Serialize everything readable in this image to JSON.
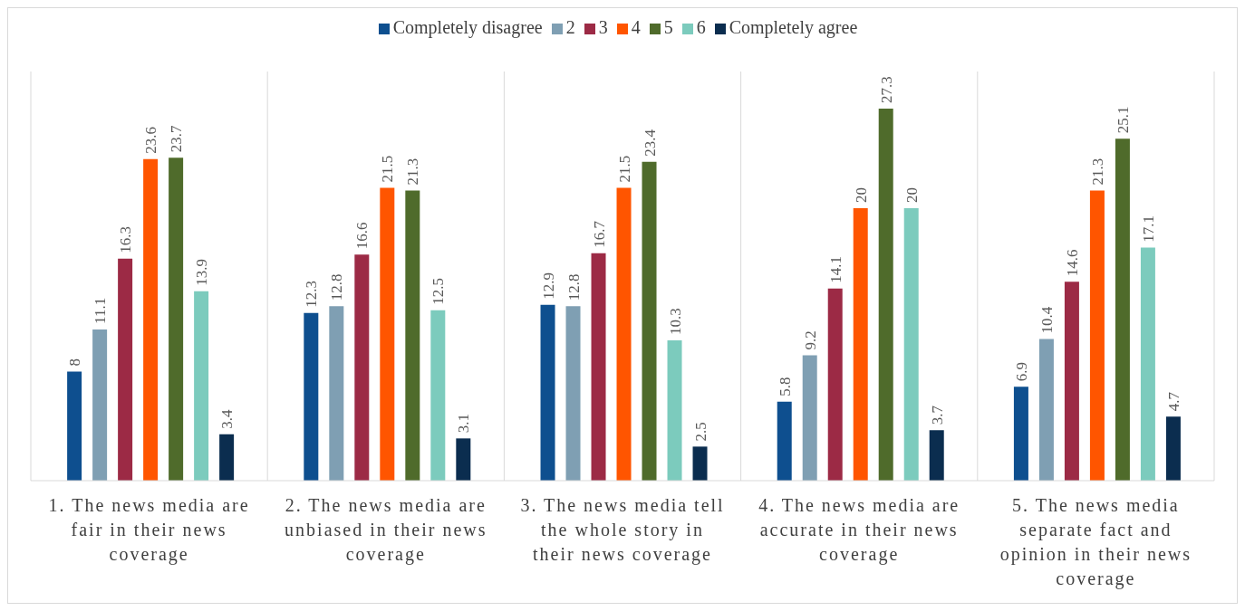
{
  "chart_data": {
    "type": "bar",
    "categories": [
      "1. The news media are fair in their news coverage",
      "2. The news media are unbiased in their news coverage",
      "3. The news media tell the whole story in their news coverage",
      "4. The news media are accurate in their news coverage",
      "5. The news media separate fact and opinion in their news coverage"
    ],
    "series": [
      {
        "name": "Completely disagree",
        "color": "#0e4f8f",
        "values": [
          8,
          12.3,
          12.9,
          5.8,
          6.9
        ]
      },
      {
        "name": "2",
        "color": "#7f9fb3",
        "values": [
          11.1,
          12.8,
          12.8,
          9.2,
          10.4
        ]
      },
      {
        "name": "3",
        "color": "#9c2a45",
        "values": [
          16.3,
          16.6,
          16.7,
          14.1,
          14.6
        ]
      },
      {
        "name": "4",
        "color": "#ff5500",
        "values": [
          23.6,
          21.5,
          21.5,
          20,
          21.3
        ]
      },
      {
        "name": "5",
        "color": "#4f6b2b",
        "values": [
          23.7,
          21.3,
          23.4,
          27.3,
          25.1
        ]
      },
      {
        "name": "6",
        "color": "#7ccbbd",
        "values": [
          13.9,
          12.5,
          10.3,
          20,
          17.1
        ]
      },
      {
        "name": "Completely agree",
        "color": "#0b2d4f",
        "values": [
          3.4,
          3.1,
          2.5,
          3.7,
          4.7
        ]
      }
    ],
    "data_labels": true,
    "grid": "x",
    "legend": "top"
  }
}
